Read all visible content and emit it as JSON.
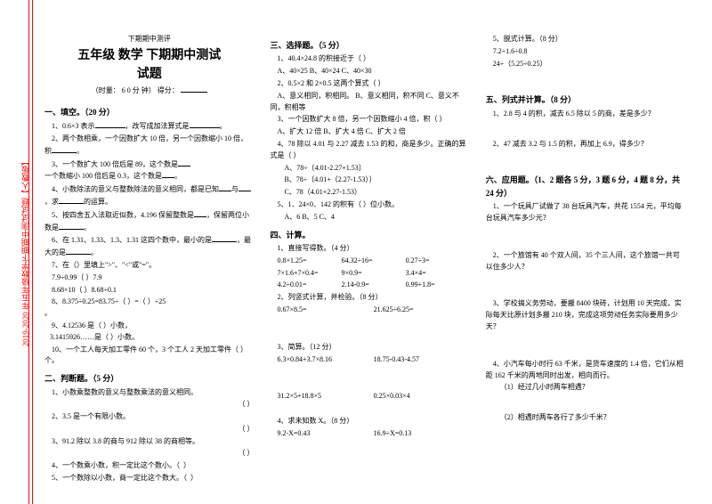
{
  "sidebar": "2019-2020 年五年级数学下期期中测试试题【人教版】",
  "pre_title": "下期期中测评",
  "title_l1": "五年级 数学 下期期中测试",
  "title_l2": "试题",
  "subtitle_prefix": "（时量：  6 0 分 钟）  得分：",
  "sec1": "一、填空。（20 分）",
  "q1_1a": "1、0.6×3 表示",
  "q1_1b": "，改写成加法算式是",
  "q1_1c": "。",
  "q1_2a": "2、两个数相乘，一个因数扩大 10 倍，另一个因数缩小 10 倍，积",
  "q1_2b": "。",
  "q1_3a": "3、一个数扩大 100 倍后是 89，这个数是",
  "q1_3b": "一个数缩小 100 倍后是 0.3，这个数是",
  "q1_3c": "。",
  "q1_4a": "4、小数除法的意义与整数除法的意义相同，都是已知",
  "q1_4b": "与",
  "q1_4c": "，求",
  "q1_4d": "的运算。",
  "q1_5a": "5、按四舍五入法取近似数，4.196 保留整数是",
  "q1_5b": "，保留两位小数是",
  "q1_5c": "。",
  "q1_6a": "6、在 1.31、1.33、1.3、1.31 这四个数中，最小的是",
  "q1_6b": "，最大的是",
  "q1_6c": "。",
  "q1_7": "7、在（）里填上\">\"、\"<\"或\"=\"。",
  "q1_7a": "7.9÷0.99（  ）7.9",
  "q1_7b": "8.68×10（  ）8.68÷0.1",
  "q1_8a": "8、8.375÷0.25=83.75÷（  ）=（  ）÷25",
  "q1_8b": "。",
  "q1_9a": "9、4.12536 是（  ）小数，",
  "q1_9b": "3.1415926……是（  ）小数。",
  "q1_10": "10、一个工人每天加工零件 60 个，3 个工人 2 天加工零件（  ）个。",
  "sec2": "二、判断题。（5 分）",
  "q2_1": "1、小数乘整数的意义与整数乘法的意义相同。",
  "q2_2": "2、3.5 是一个有限小数。",
  "q2_3": "3、91.2 除以 3.8 的商与 912 除以 38 的商相等。",
  "q2_4": "4、一个数乘小数，积一定比这个数小。（",
  "q2_5": "5、一个数除以小数，商一定比这个数大。（",
  "paren": "（          ）",
  "sec3": "三、选择题。（5 分）",
  "q3_1": "1、40.4×24.8 的积接近于（    ）",
  "q3_1o": "A、40×25      B、40×24      C、40×30",
  "q3_2": "2、0.5×2 和 2×0.5 这两个算式（    ）",
  "q3_2a": "A、意义相同，积相同。      B、意义相同，积不同      C、意义不同，积相等",
  "q3_3": "3、一个因数扩大 8 倍，另一个因数缩小 4 倍，积（    ）",
  "q3_3o": "A、扩大 12 倍    B、扩大 4 倍    C、扩大 2 倍",
  "q3_4": "4、78 除以 4.01 与 2.27 减去 1.53 的和，商是多少。正确的算式是（    ）",
  "q3_4a": "A、78÷〔4.01-2.27+1.53〕",
  "q3_4b": "B、78÷〔4.01+（2.27-1.53）〕",
  "q3_4c": "C、78（4.01+2.27-1.53）",
  "q3_5": "5、1．24×0．142 的积有（    ）位小数。",
  "q3_5o": "A、6          B、5          C、4",
  "sec4": "四、计算。",
  "q4_1": "1、直接写得数。（4 分）",
  "r1a": "0.8×1.25=",
  "r1b": "64.32÷16=",
  "r1c": "0.27÷3=",
  "r2a": "7×1.6+7×0.4=",
  "r2b": "9×0.9=",
  "r2c": "3.4×4=",
  "r3a": "4.2÷0.01=",
  "r3b": "2.14-0.9=",
  "r3c": "0.99+1.8=",
  "q4_2": "2、列竖式计算，并检验。（8 分）",
  "r4a": "0.67×8.5=",
  "r4b": "21.625÷6.25=",
  "q4_3": "3、简算。（12 分）",
  "r5a": "6.3×0.84+3.7×8.16",
  "r5b": "18.75-0.43-4.57",
  "r6a": "31.2×5+18.8×5",
  "r6b": "0.25×0.03×4",
  "q4_4": "4、求未知数 X。（8 分）",
  "r7a": "9.2-X=0.43",
  "r7b": "16.9÷X=0.13",
  "q4_5": "5、脱式计算。（8 分）",
  "r8a": "7.2÷1.6÷0.8",
  "r8b": "24÷（5.25÷0.25）",
  "sec5": "五、列式并计算。（8 分）",
  "q5_1": "1、2.8 与 4 的积，减去 6.5 除以 5 的商，差是多少？",
  "q5_2": "2、47 减去 3.2 与 1.5 的积，再加上 6.9，得多少？",
  "sec6": "六、应用题。（1、2 题各 5 分，3 题 6 分，4 题 8 分，共 24 分）",
  "q6_1": "1、一个玩具厂试做了 38 台玩具汽车，共花 1554 元，平均每台玩具汽车多少元？",
  "q6_2": "2、一个旅馆有 40 个双人间，35 个三人间，这个旅馆一共可以住多少人？",
  "q6_3": "3、学校搞义务劳动，要搬 8400 块砖，计划用 10 天完成，实际每天比原计划多搬 210 块，完成这项劳动任务实际要用多少天？",
  "q6_4": "4、小汽车每小时行 63 千米，是货车速度的 1.4 倍，它们从相距 162 千米的两地同时出发，相向而行。",
  "q6_4a": "（1）经过几小时两车相遇？",
  "q6_4b": "（2）相遇时两车各行了多少千米？"
}
